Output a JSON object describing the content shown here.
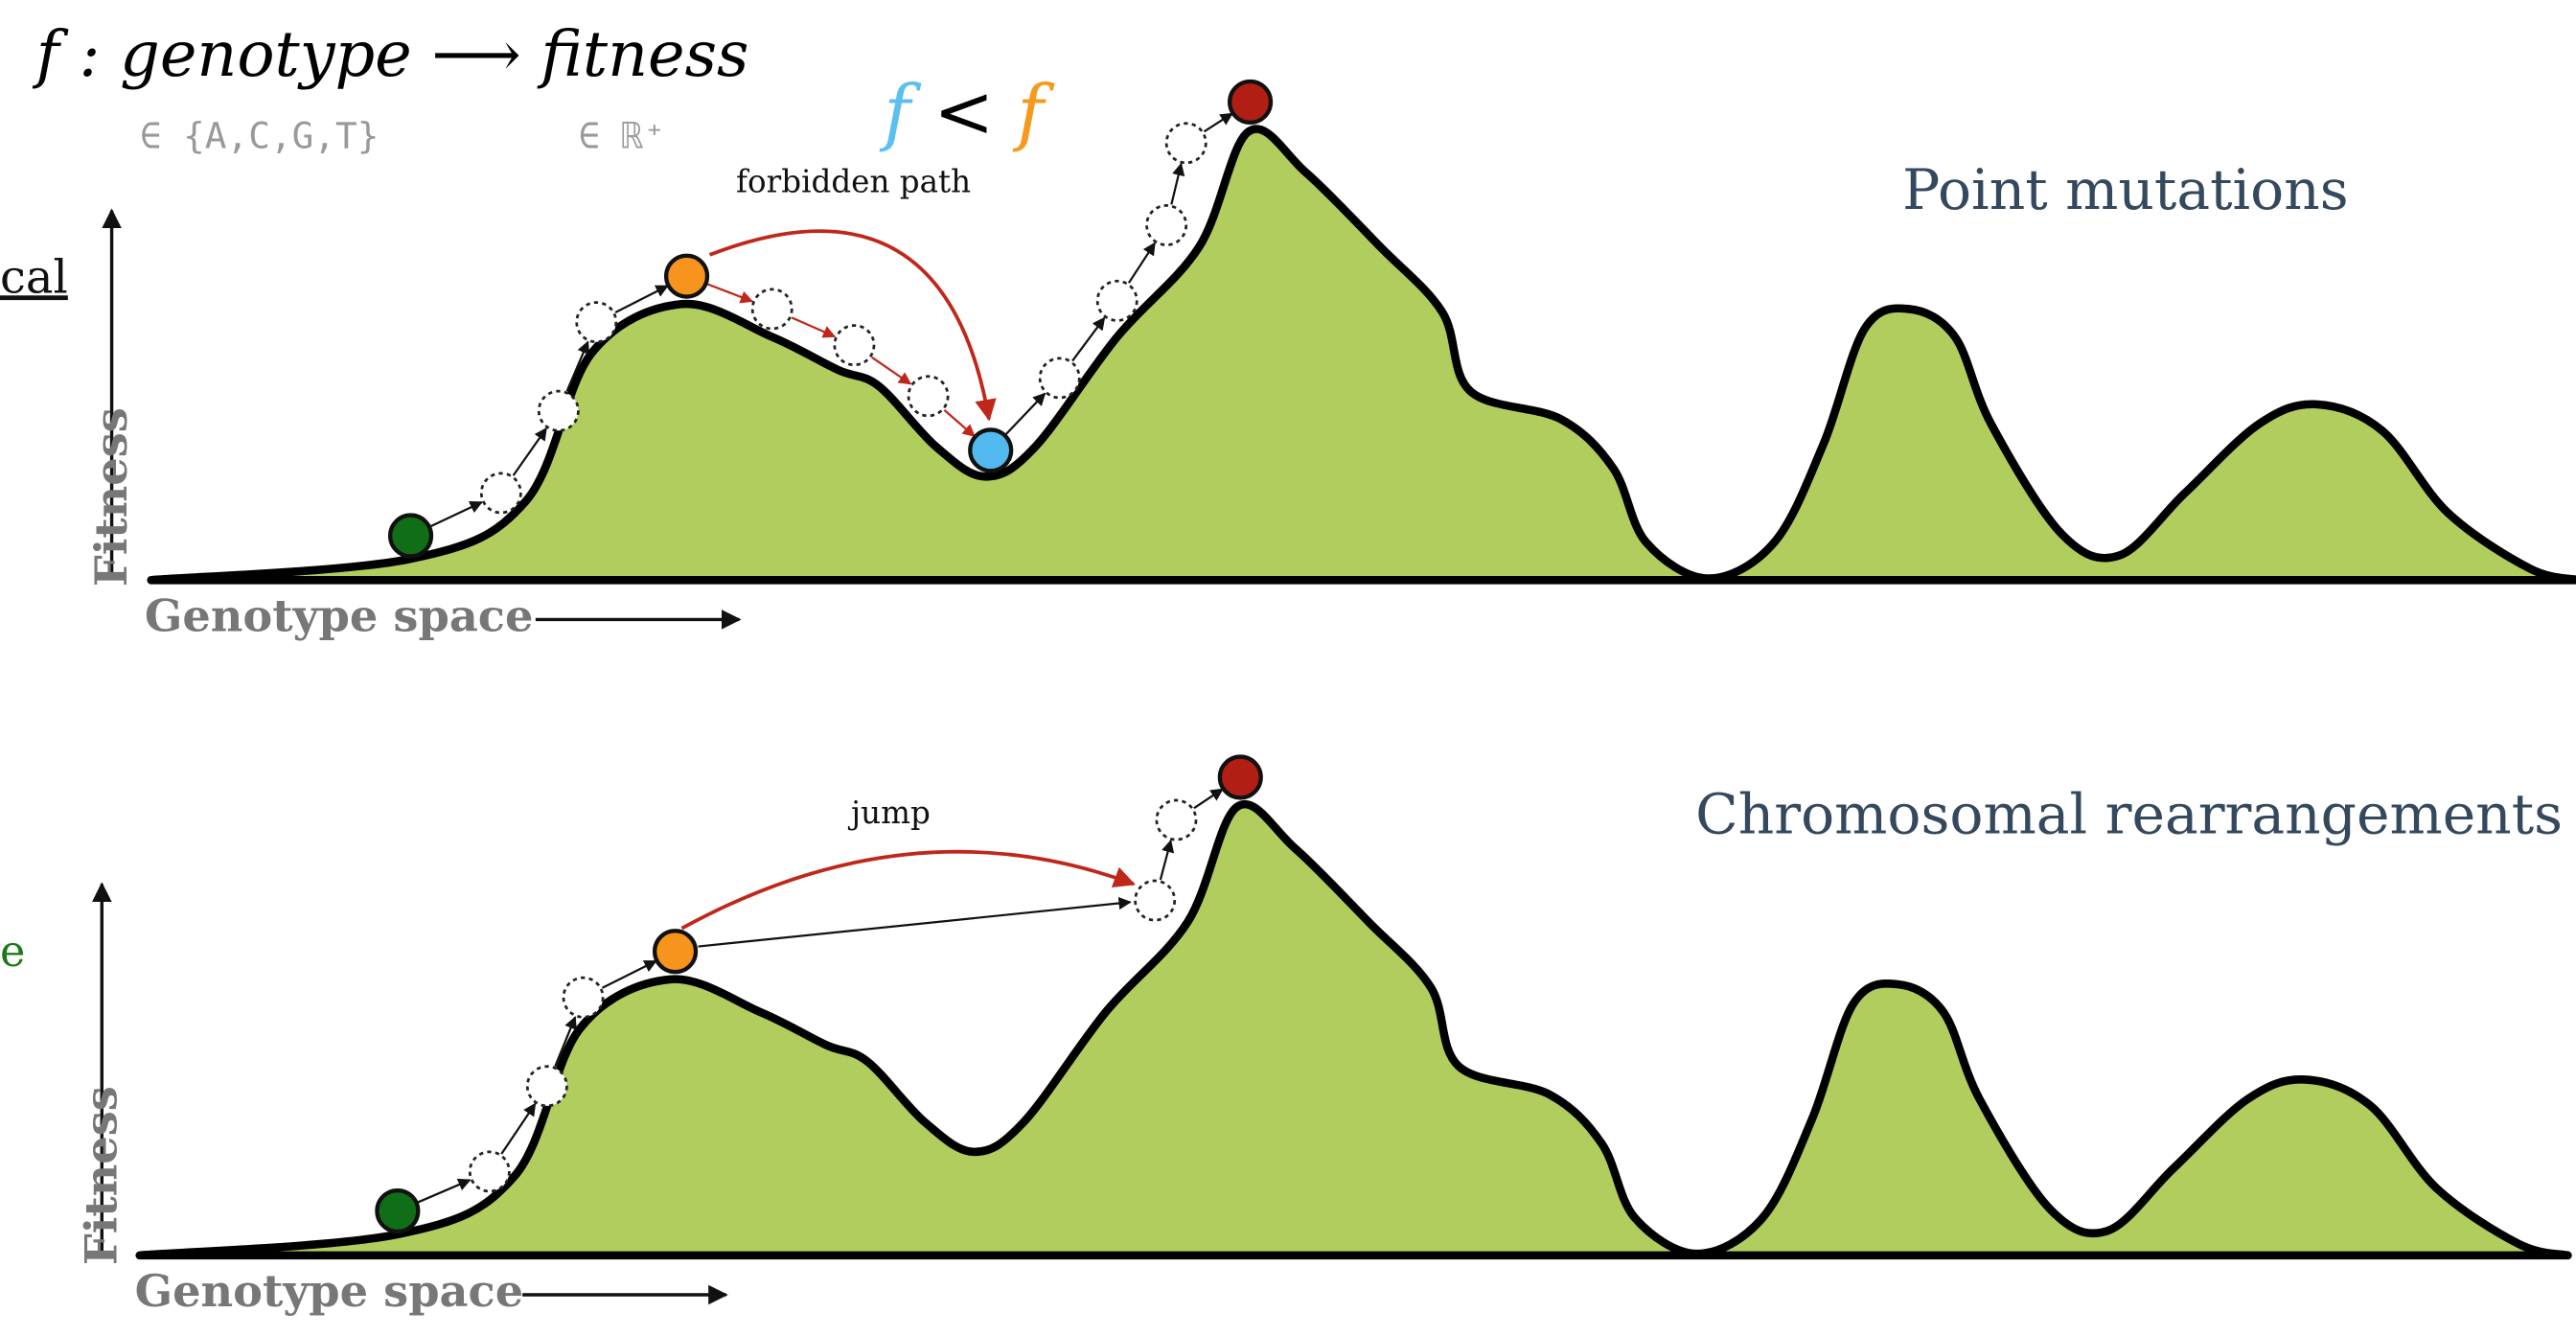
{
  "header": {
    "formula": "f : genotype ⟶ fitness",
    "domain_note": "∈ {A,C,G,T}",
    "codomain_note": "∈ ℝ⁺",
    "comparison": [
      "f",
      "<",
      "f"
    ]
  },
  "panels": [
    {
      "title": "Point mutations",
      "side_label": "cal",
      "y_axis": "Fitness",
      "x_axis": "Genotype space",
      "annotation": "forbidden path"
    },
    {
      "title": "Chromosomal rearrangements",
      "side_label": "e",
      "y_axis": "Fitness",
      "x_axis": "Genotype space",
      "annotation": "jump"
    }
  ]
}
